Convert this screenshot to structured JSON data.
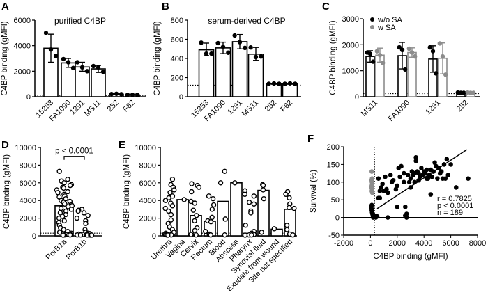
{
  "colors": {
    "black": "#000000",
    "gray": "#8c8c8c",
    "bar_fill": "#ffffff"
  },
  "chart_data": [
    {
      "panel": "A",
      "type": "bar",
      "title": "purified C4BP",
      "ylabel": "C4BP binding (gMFI)",
      "ylim": [
        0,
        6000
      ],
      "yticks": [
        0,
        2000,
        4000,
        6000
      ],
      "threshold": 100,
      "categories": [
        "15253",
        "FA1090",
        "1291",
        "MS11",
        "252",
        "F62"
      ],
      "values": [
        3800,
        2650,
        2330,
        2180,
        200,
        150
      ],
      "error_low": [
        2700,
        2300,
        2000,
        1900,
        180,
        130
      ],
      "error_high": [
        4900,
        3000,
        2700,
        2450,
        220,
        160
      ],
      "points": [
        [
          5000,
          3700,
          3200
        ],
        [
          2950,
          2700,
          2250
        ],
        [
          2700,
          2300,
          2000
        ],
        [
          2400,
          2300,
          1950
        ],
        [
          210,
          230,
          200
        ],
        [
          150,
          150,
          140
        ]
      ]
    },
    {
      "panel": "B",
      "type": "bar",
      "title": "serum-derived C4BP",
      "ylabel": "C4BP binding (gMFI)",
      "ylim": [
        0,
        800
      ],
      "yticks": [
        0,
        200,
        400,
        600,
        800
      ],
      "threshold": 120,
      "categories": [
        "15253",
        "FA1090",
        "1291",
        "MS11",
        "252",
        "F62"
      ],
      "values": [
        490,
        510,
        575,
        445,
        135,
        135
      ],
      "error_low": [
        430,
        450,
        500,
        380,
        130,
        130
      ],
      "error_high": [
        560,
        570,
        650,
        515,
        140,
        140
      ],
      "points": [
        [
          565,
          450,
          450
        ],
        [
          560,
          520,
          460
        ],
        [
          640,
          570,
          510
        ],
        [
          515,
          415,
          420
        ],
        [
          135,
          138,
          135
        ],
        [
          135,
          140,
          135
        ]
      ]
    },
    {
      "panel": "C",
      "type": "bar",
      "title": "",
      "ylabel": "C4BP binding (gMFI)",
      "ylim": [
        0,
        3000
      ],
      "yticks": [
        0,
        1000,
        2000,
        3000
      ],
      "threshold": 120,
      "legend": "top-left",
      "categories": [
        "MS11",
        "FA1090",
        "1291",
        "252"
      ],
      "series": [
        {
          "name": "w/o SA",
          "color": "#000000",
          "values": [
            1550,
            1580,
            1450,
            150
          ],
          "error_low": [
            1330,
            1070,
            940,
            130
          ],
          "error_high": [
            1770,
            2090,
            1960,
            170
          ],
          "points": [
            [
              1700,
              1650,
              1350
            ],
            [
              1900,
              1800,
              1050
            ],
            [
              1900,
              1750,
              900
            ],
            [
              160,
              150,
              150
            ]
          ]
        },
        {
          "name": "w SA",
          "color": "#8c8c8c",
          "values": [
            1600,
            1700,
            1480,
            150
          ],
          "error_low": [
            1330,
            1520,
            880,
            130
          ],
          "error_high": [
            1870,
            1880,
            2070,
            170
          ],
          "points": [
            [
              1750,
              1600,
              1300
            ],
            [
              1850,
              1700,
              1550
            ],
            [
              2050,
              1550,
              850
            ],
            [
              160,
              150,
              150
            ]
          ]
        }
      ]
    },
    {
      "panel": "D",
      "type": "bar",
      "title": "",
      "ylabel": "C4BP binding (gMFI)",
      "ylim": [
        0,
        10000
      ],
      "yticks": [
        0,
        2000,
        4000,
        6000,
        8000,
        10000
      ],
      "threshold": 300,
      "annotation": "p < 0.0001",
      "categories": [
        "PorB1a",
        "PorB1b"
      ],
      "values": [
        3400,
        200
      ],
      "points": [
        [
          7300,
          6400,
          6200,
          6000,
          5800,
          5700,
          5500,
          5400,
          5200,
          5000,
          4900,
          4700,
          4500,
          4400,
          4200,
          4000,
          3900,
          3800,
          3600,
          3500,
          3400,
          3300,
          3100,
          3000,
          2800,
          2600,
          2400,
          2200,
          2000,
          1700,
          1500,
          1200,
          900,
          700,
          500,
          400,
          300,
          200,
          150,
          100,
          100,
          80
        ],
        [
          3000,
          2900,
          2800,
          2600,
          2300,
          2000,
          1700,
          1400,
          700,
          400,
          300,
          250,
          200,
          150,
          120,
          100,
          100,
          90,
          80,
          80
        ]
      ]
    },
    {
      "panel": "E",
      "type": "bar",
      "title": "",
      "ylabel": "C4BP binding (gMFI)",
      "ylim": [
        0,
        10000
      ],
      "yticks": [
        0,
        2000,
        4000,
        6000,
        8000,
        10000
      ],
      "threshold": 300,
      "categories": [
        "Urethra",
        "Vagina",
        "Cervix",
        "Rectum",
        "Blood",
        "Abscess",
        "Pharynx",
        "Synovial fluid",
        "Exudate from wound",
        "Site not specified"
      ],
      "values": [
        400,
        4100,
        2300,
        1650,
        3900,
        6000,
        150,
        5150,
        750,
        3000
      ],
      "points": [
        [
          6400,
          5800,
          5500,
          5200,
          4900,
          4500,
          4300,
          4000,
          3700,
          3400,
          3100,
          2800,
          2400,
          1800,
          1400,
          1000,
          700,
          400,
          300,
          200,
          150,
          100,
          100,
          80
        ],
        [
          4100
        ],
        [
          5900,
          5700,
          5500,
          5000,
          3900,
          3700,
          2900,
          2300,
          1700,
          900,
          600,
          200,
          150,
          100
        ],
        [
          4500,
          4200,
          3500,
          3000,
          2100,
          1700,
          1600,
          500,
          200,
          150,
          100
        ],
        [
          7300,
          6000,
          1900,
          100
        ],
        [
          6000
        ],
        [
          5100,
          4700,
          4500,
          3800,
          3600,
          2800,
          2600,
          1200,
          500,
          300,
          150,
          100,
          100,
          80
        ],
        [
          5800,
          5700,
          5200,
          4200,
          400
        ],
        [
          800
        ],
        [
          5000,
          4700,
          4300,
          3600,
          3200,
          3100,
          1200,
          700,
          200,
          100
        ]
      ]
    },
    {
      "panel": "F",
      "type": "scatter",
      "title": "",
      "xlabel": "C4BP binding (gMFI)",
      "ylabel": "Survival (%)",
      "xlim": [
        -2000,
        8000
      ],
      "ylim": [
        -50,
        200
      ],
      "xticks": [
        -2000,
        0,
        2000,
        4000,
        6000,
        8000
      ],
      "yticks": [
        -50,
        0,
        50,
        100,
        150,
        200
      ],
      "threshold_x": 300,
      "regression": {
        "x": [
          500,
          7200
        ],
        "y": [
          25,
          192
        ]
      },
      "stats": {
        "r": "r = 0.7825",
        "p": "p < 0.0001",
        "n": "n = 189"
      },
      "series": [
        {
          "color": "#000000",
          "x": [
            600,
            700,
            900,
            1100,
            1300,
            1500,
            1700,
            1900,
            2000,
            2100,
            2200,
            2300,
            2500,
            2600,
            2700,
            2800,
            2900,
            3000,
            3100,
            3200,
            3300,
            3400,
            3500,
            3600,
            3700,
            3800,
            3900,
            4000,
            4100,
            4200,
            4300,
            4400,
            4500,
            4600,
            4700,
            4800,
            4900,
            5000,
            5100,
            5200,
            5400,
            5500,
            5600,
            5700,
            5800,
            6000,
            6400,
            7300,
            2500,
            2600,
            2700,
            1300,
            2000,
            3000,
            3400,
            4500,
            800,
            1000,
            1200,
            1600,
            600,
            700,
            3300,
            3600,
            4200,
            5300
          ],
          "y": [
            110,
            75,
            95,
            115,
            70,
            120,
            105,
            80,
            30,
            140,
            115,
            145,
            125,
            30,
            10,
            120,
            100,
            110,
            130,
            120,
            100,
            170,
            130,
            125,
            115,
            140,
            120,
            130,
            125,
            135,
            110,
            120,
            65,
            115,
            130,
            155,
            145,
            110,
            140,
            125,
            110,
            150,
            110,
            165,
            120,
            150,
            85,
            110,
            100,
            5,
            0,
            0,
            90,
            85,
            160,
            135,
            85,
            75,
            80,
            100,
            55,
            55,
            125,
            105,
            110,
            130
          ]
        },
        {
          "color": "#000000",
          "x": [
            50,
            80,
            100,
            120,
            150,
            180,
            200,
            250,
            300,
            400,
            500,
            100,
            150,
            200
          ],
          "y": [
            30,
            25,
            20,
            15,
            10,
            5,
            0,
            2,
            5,
            0,
            3,
            35,
            12,
            8
          ]
        },
        {
          "color": "#8c8c8c",
          "x": [
            100,
            120,
            90,
            110,
            130,
            100,
            80,
            120,
            100,
            140
          ],
          "y": [
            130,
            110,
            105,
            100,
            95,
            90,
            85,
            80,
            75,
            70
          ]
        }
      ]
    }
  ]
}
